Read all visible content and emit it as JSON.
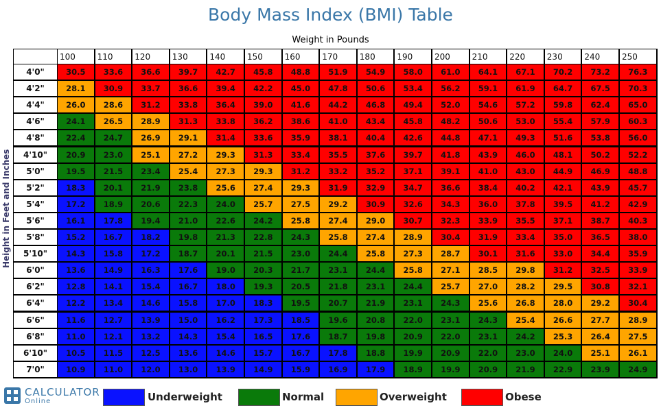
{
  "title": "Body Mass Index (BMI) Table",
  "logo": {
    "line1": "CALCULATOR",
    "line2": "Online"
  },
  "colors": {
    "underweight": "#0a12ff",
    "normal": "#0a7a0a",
    "overweight": "#ffa500",
    "obese": "#ff0000"
  },
  "legend": [
    {
      "key": "underweight",
      "label": "Underweight"
    },
    {
      "key": "normal",
      "label": "Normal"
    },
    {
      "key": "overweight",
      "label": "Overweight"
    },
    {
      "key": "obese",
      "label": "Obese"
    }
  ],
  "chart_data": {
    "type": "table",
    "title": "Body Mass Index (BMI) Table",
    "xlabel": "Weight in Pounds",
    "ylabel": "Height in Feet and Inches",
    "columns": [
      "100",
      "110",
      "120",
      "130",
      "140",
      "150",
      "160",
      "170",
      "180",
      "190",
      "200",
      "210",
      "220",
      "230",
      "240",
      "250"
    ],
    "rows": [
      "4'0\"",
      "4'2\"",
      "4'4\"",
      "4'6\"",
      "4'8\"",
      "4'10\"",
      "5'0\"",
      "5'2\"",
      "5'4\"",
      "5'6\"",
      "5'8\"",
      "5'10\"",
      "6'0\"",
      "6'2\"",
      "6'4\"",
      "6'6\"",
      "6'8\"",
      "6'10\"",
      "7'0\""
    ],
    "values": [
      [
        "30.5",
        "33.6",
        "36.6",
        "39.7",
        "42.7",
        "45.8",
        "48.8",
        "51.9",
        "54.9",
        "58.0",
        "61.0",
        "64.1",
        "67.1",
        "70.2",
        "73.2",
        "76.3"
      ],
      [
        "28.1",
        "30.9",
        "33.7",
        "36.6",
        "39.4",
        "42.2",
        "45.0",
        "47.8",
        "50.6",
        "53.4",
        "56.2",
        "59.1",
        "61.9",
        "64.7",
        "67.5",
        "70.3"
      ],
      [
        "26.0",
        "28.6",
        "31.2",
        "33.8",
        "36.4",
        "39.0",
        "41.6",
        "44.2",
        "46.8",
        "49.4",
        "52.0",
        "54.6",
        "57.2",
        "59.8",
        "62.4",
        "65.0"
      ],
      [
        "24.1",
        "26.5",
        "28.9",
        "31.3",
        "33.8",
        "36.2",
        "38.6",
        "41.0",
        "43.4",
        "45.8",
        "48.2",
        "50.6",
        "53.0",
        "55.4",
        "57.9",
        "60.3"
      ],
      [
        "22.4",
        "24.7",
        "26.9",
        "29.1",
        "31.4",
        "33.6",
        "35.9",
        "38.1",
        "40.4",
        "42.6",
        "44.8",
        "47.1",
        "49.3",
        "51.6",
        "53.8",
        "56.0"
      ],
      [
        "20.9",
        "23.0",
        "25.1",
        "27.2",
        "29.3",
        "31.3",
        "33.4",
        "35.5",
        "37.6",
        "39.7",
        "41.8",
        "43.9",
        "46.0",
        "48.1",
        "50.2",
        "52.2"
      ],
      [
        "19.5",
        "21.5",
        "23.4",
        "25.4",
        "27.3",
        "29.3",
        "31.2",
        "33.2",
        "35.2",
        "37.1",
        "39.1",
        "41.0",
        "43.0",
        "44.9",
        "46.9",
        "48.8"
      ],
      [
        "18.3",
        "20.1",
        "21.9",
        "23.8",
        "25.6",
        "27.4",
        "29.3",
        "31.9",
        "32.9",
        "34.7",
        "36.6",
        "38.4",
        "40.2",
        "42.1",
        "43.9",
        "45.7"
      ],
      [
        "17.2",
        "18.9",
        "20.6",
        "22.3",
        "24.0",
        "25.7",
        "27.5",
        "29.2",
        "30.9",
        "32.6",
        "34.3",
        "36.0",
        "37.8",
        "39.5",
        "41.2",
        "42.9"
      ],
      [
        "16.1",
        "17.8",
        "19.4",
        "21.0",
        "22.6",
        "24.2",
        "25.8",
        "27.4",
        "29.0",
        "30.7",
        "32.3",
        "33.9",
        "35.5",
        "37.1",
        "38.7",
        "40.3"
      ],
      [
        "15.2",
        "16.7",
        "18.2",
        "19.8",
        "21.3",
        "22.8",
        "24.3",
        "25.8",
        "27.4",
        "28.9",
        "30.4",
        "31.9",
        "33.4",
        "35.0",
        "36.5",
        "38.0"
      ],
      [
        "14.3",
        "15.8",
        "17.2",
        "18.7",
        "20.1",
        "21.5",
        "23.0",
        "24.4",
        "25.8",
        "27.3",
        "28.7",
        "30.1",
        "31.6",
        "33.0",
        "34.4",
        "35.9"
      ],
      [
        "13.6",
        "14.9",
        "16.3",
        "17.6",
        "19.0",
        "20.3",
        "21.7",
        "23.1",
        "24.4",
        "25.8",
        "27.1",
        "28.5",
        "29.8",
        "31.2",
        "32.5",
        "33.9"
      ],
      [
        "12.8",
        "14.1",
        "15.4",
        "16.7",
        "18.0",
        "19.3",
        "20.5",
        "21.8",
        "23.1",
        "24.4",
        "25.7",
        "27.0",
        "28.2",
        "29.5",
        "30.8",
        "32.1"
      ],
      [
        "12.2",
        "13.4",
        "14.6",
        "15.8",
        "17.0",
        "18.3",
        "19.5",
        "20.7",
        "21.9",
        "23.1",
        "24.3",
        "25.6",
        "26.8",
        "28.0",
        "29.2",
        "30.4"
      ],
      [
        "11.6",
        "12.7",
        "13.9",
        "15.0",
        "16.2",
        "17.3",
        "18.5",
        "19.6",
        "20.8",
        "22.0",
        "23.1",
        "24.3",
        "25.4",
        "26.6",
        "27.7",
        "28.9"
      ],
      [
        "11.0",
        "12.1",
        "13.2",
        "14.3",
        "15.4",
        "16.5",
        "17.6",
        "18.7",
        "19.8",
        "20.9",
        "22.0",
        "23.1",
        "24.2",
        "25.3",
        "26.4",
        "27.5"
      ],
      [
        "10.5",
        "11.5",
        "12.5",
        "13.6",
        "14.6",
        "15.7",
        "16.7",
        "17.8",
        "18.8",
        "19.9",
        "20.9",
        "22.0",
        "23.0",
        "24.0",
        "25.1",
        "26.1"
      ],
      [
        "10.9",
        "11.0",
        "12.0",
        "13.0",
        "13.9",
        "14.9",
        "15.9",
        "16.9",
        "17.9",
        "18.9",
        "19.9",
        "20.9",
        "21.9",
        "22.9",
        "23.9",
        "24.9"
      ]
    ],
    "categories": [
      [
        "O",
        "O",
        "O",
        "O",
        "O",
        "O",
        "O",
        "O",
        "O",
        "O",
        "O",
        "O",
        "O",
        "O",
        "O",
        "O"
      ],
      [
        "V",
        "O",
        "O",
        "O",
        "O",
        "O",
        "O",
        "O",
        "O",
        "O",
        "O",
        "O",
        "O",
        "O",
        "O",
        "O"
      ],
      [
        "V",
        "V",
        "O",
        "O",
        "O",
        "O",
        "O",
        "O",
        "O",
        "O",
        "O",
        "O",
        "O",
        "O",
        "O",
        "O"
      ],
      [
        "N",
        "V",
        "V",
        "O",
        "O",
        "O",
        "O",
        "O",
        "O",
        "O",
        "O",
        "O",
        "O",
        "O",
        "O",
        "O"
      ],
      [
        "N",
        "N",
        "V",
        "V",
        "O",
        "O",
        "O",
        "O",
        "O",
        "O",
        "O",
        "O",
        "O",
        "O",
        "O",
        "O"
      ],
      [
        "N",
        "N",
        "V",
        "V",
        "V",
        "O",
        "O",
        "O",
        "O",
        "O",
        "O",
        "O",
        "O",
        "O",
        "O",
        "O"
      ],
      [
        "N",
        "N",
        "N",
        "V",
        "V",
        "V",
        "O",
        "O",
        "O",
        "O",
        "O",
        "O",
        "O",
        "O",
        "O",
        "O"
      ],
      [
        "U",
        "N",
        "N",
        "N",
        "V",
        "V",
        "V",
        "O",
        "O",
        "O",
        "O",
        "O",
        "O",
        "O",
        "O",
        "O"
      ],
      [
        "U",
        "N",
        "N",
        "N",
        "N",
        "V",
        "V",
        "V",
        "O",
        "O",
        "O",
        "O",
        "O",
        "O",
        "O",
        "O"
      ],
      [
        "U",
        "U",
        "N",
        "N",
        "N",
        "N",
        "V",
        "V",
        "V",
        "O",
        "O",
        "O",
        "O",
        "O",
        "O",
        "O"
      ],
      [
        "U",
        "U",
        "U",
        "N",
        "N",
        "N",
        "N",
        "V",
        "V",
        "V",
        "O",
        "O",
        "O",
        "O",
        "O",
        "O"
      ],
      [
        "U",
        "U",
        "U",
        "N",
        "N",
        "N",
        "N",
        "N",
        "V",
        "V",
        "V",
        "O",
        "O",
        "O",
        "O",
        "O"
      ],
      [
        "U",
        "U",
        "U",
        "U",
        "N",
        "N",
        "N",
        "N",
        "N",
        "V",
        "V",
        "V",
        "V",
        "O",
        "O",
        "O"
      ],
      [
        "U",
        "U",
        "U",
        "U",
        "U",
        "N",
        "N",
        "N",
        "N",
        "N",
        "V",
        "V",
        "V",
        "V",
        "O",
        "O"
      ],
      [
        "U",
        "U",
        "U",
        "U",
        "U",
        "U",
        "N",
        "N",
        "N",
        "N",
        "N",
        "V",
        "V",
        "V",
        "V",
        "O"
      ],
      [
        "U",
        "U",
        "U",
        "U",
        "U",
        "U",
        "U",
        "N",
        "N",
        "N",
        "N",
        "N",
        "V",
        "V",
        "V",
        "V"
      ],
      [
        "U",
        "U",
        "U",
        "U",
        "U",
        "U",
        "U",
        "N",
        "N",
        "N",
        "N",
        "N",
        "N",
        "V",
        "V",
        "V"
      ],
      [
        "U",
        "U",
        "U",
        "U",
        "U",
        "U",
        "U",
        "U",
        "N",
        "N",
        "N",
        "N",
        "N",
        "N",
        "V",
        "V"
      ],
      [
        "U",
        "U",
        "U",
        "U",
        "U",
        "U",
        "U",
        "U",
        "U",
        "N",
        "N",
        "N",
        "N",
        "N",
        "N",
        "N"
      ]
    ]
  }
}
